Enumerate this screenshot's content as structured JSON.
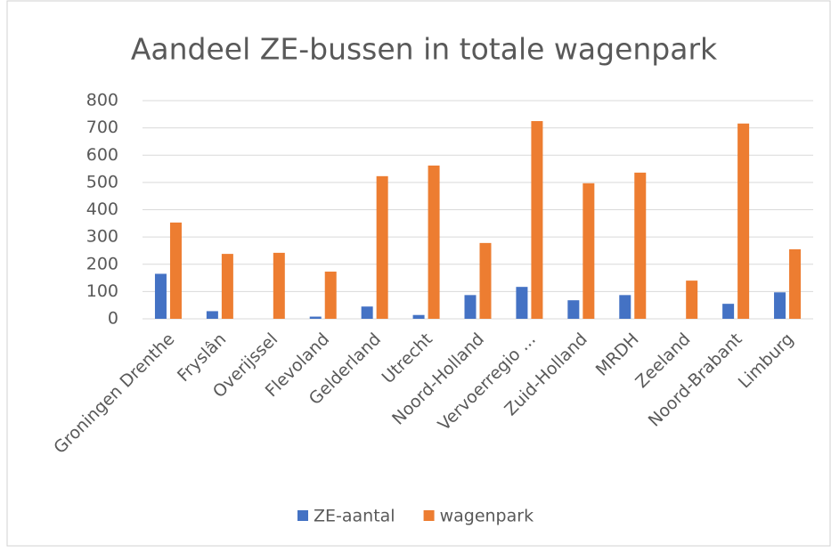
{
  "chart_data": {
    "type": "bar",
    "title": "Aandeel ZE-bussen in totale wagenpark",
    "categories": [
      "Groningen Drenthe",
      "Fryslân",
      "Overijssel",
      "Flevoland",
      "Gelderland",
      "Utrecht",
      "Noord-Holland",
      "Vervoerregio ...",
      "Zuid-Holland",
      "MRDH",
      "Zeeland",
      "Noord-Brabant",
      "Limburg"
    ],
    "series": [
      {
        "name": "ZE-aantal",
        "color": "#4472c4",
        "values": [
          165,
          28,
          0,
          8,
          45,
          14,
          87,
          117,
          68,
          87,
          0,
          55,
          97
        ]
      },
      {
        "name": "wagenpark",
        "color": "#ed7d31",
        "values": [
          353,
          238,
          242,
          173,
          523,
          562,
          278,
          725,
          497,
          536,
          140,
          716,
          255
        ]
      }
    ],
    "ylim": [
      0,
      800
    ],
    "yticks": [
      0,
      100,
      200,
      300,
      400,
      500,
      600,
      700,
      800
    ],
    "grid": true,
    "legend": "bottom"
  }
}
